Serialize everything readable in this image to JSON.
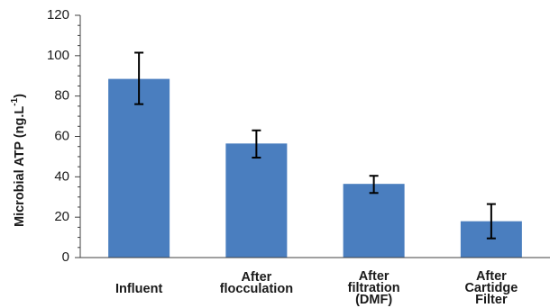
{
  "chart_data": {
    "type": "bar",
    "categories": [
      [
        "Influent"
      ],
      [
        "After",
        "flocculation"
      ],
      [
        "After",
        "filtration",
        "(DMF)"
      ],
      [
        "After",
        "Cartidge",
        "Filter"
      ]
    ],
    "values": [
      88.5,
      56.5,
      36.5,
      18
    ],
    "error_low": [
      76,
      49.5,
      32,
      9.5
    ],
    "error_high": [
      101.5,
      63,
      40.5,
      26.5
    ],
    "ylabel": {
      "main": "Microbial ATP (ng.L",
      "sup": "-1",
      "end": ")"
    },
    "ylim": [
      0,
      120
    ],
    "yticks": [
      0,
      20,
      40,
      60,
      80,
      100,
      120
    ],
    "minor_tick_step": 5,
    "grid": false,
    "bar_color": "#4a7ebf",
    "error_bar_color": "#000000",
    "axis_color": "#404040"
  }
}
